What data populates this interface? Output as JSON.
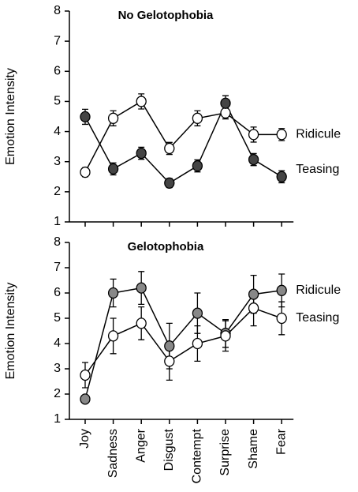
{
  "chart_data": [
    {
      "type": "line",
      "title": "No Gelotophobia",
      "y_label": "Emotion Intensity",
      "ylim": [
        1,
        8
      ],
      "yticks": [
        1,
        2,
        3,
        4,
        5,
        6,
        7,
        8
      ],
      "series": [
        {
          "name": "Ridicule",
          "color": "#ffffff",
          "values": [
            2.65,
            4.44,
            5.0,
            3.44,
            4.44,
            4.62,
            3.9,
            3.9
          ],
          "errors": [
            0.15,
            0.25,
            0.25,
            0.2,
            0.25,
            0.2,
            0.25,
            0.2
          ]
        },
        {
          "name": "Teasing",
          "color": "#444444",
          "values": [
            4.49,
            2.76,
            3.28,
            2.29,
            2.86,
            4.94,
            3.07,
            2.5
          ],
          "errors": [
            0.25,
            0.2,
            0.2,
            0.15,
            0.2,
            0.25,
            0.2,
            0.2
          ]
        }
      ]
    },
    {
      "type": "line",
      "title": "Gelotophobia",
      "y_label": "Emotion Intensity",
      "categories": [
        "Joy",
        "Sadness",
        "Anger",
        "Disgust",
        "Contempt",
        "Surprise",
        "Shame",
        "Fear"
      ],
      "ylim": [
        1,
        8
      ],
      "yticks": [
        1,
        2,
        3,
        4,
        5,
        6,
        7,
        8
      ],
      "series": [
        {
          "name": "Ridicule",
          "color": "#888888",
          "values": [
            1.8,
            6.0,
            6.2,
            3.9,
            5.2,
            4.4,
            5.95,
            6.1
          ],
          "errors": [
            0.15,
            0.55,
            0.65,
            0.9,
            0.8,
            0.55,
            0.75,
            0.65
          ]
        },
        {
          "name": "Teasing",
          "color": "#ffffff",
          "values": [
            2.75,
            4.3,
            4.8,
            3.3,
            4.0,
            4.3,
            5.4,
            5.0
          ],
          "errors": [
            0.5,
            0.7,
            0.65,
            0.75,
            0.7,
            0.6,
            0.7,
            0.65
          ]
        }
      ]
    }
  ]
}
